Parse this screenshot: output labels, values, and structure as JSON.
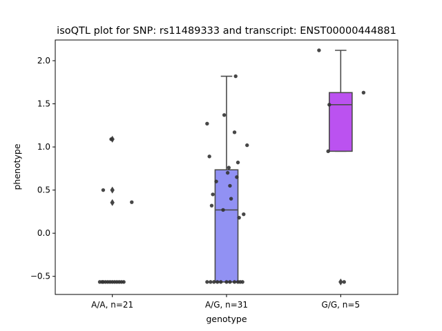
{
  "chart_data": {
    "type": "box",
    "title": "isoQTL plot for SNP: rs11489333 and transcript: ENST00000444881",
    "xlabel": "genotype",
    "ylabel": "phenotype",
    "ylim": [
      -0.71,
      2.24
    ],
    "yticks": [
      -0.5,
      0.0,
      0.5,
      1.0,
      1.5,
      2.0
    ],
    "ytick_labels": [
      "−0.5",
      "0.0",
      "0.5",
      "1.0",
      "1.5",
      "2.0"
    ],
    "grid": false,
    "categories": [
      "A/A, n=21",
      "A/G, n=31",
      "G/G, n=5"
    ],
    "boxes": [
      {
        "category": "A/A, n=21",
        "color": "#e9838a",
        "q1": -0.565,
        "median": -0.565,
        "q3": -0.565,
        "whisker_low": -0.565,
        "whisker_high": -0.565,
        "outliers": [
          1.09,
          0.5,
          0.355
        ]
      },
      {
        "category": "A/G, n=31",
        "color": "#9191f3",
        "q1": -0.565,
        "median": 0.27,
        "q3": 0.735,
        "whisker_low": -0.565,
        "whisker_high": 1.82,
        "outliers": []
      },
      {
        "category": "G/G, n=5",
        "color": "#bb52f0",
        "q1": 0.95,
        "median": 1.49,
        "q3": 1.63,
        "whisker_low": 0.95,
        "whisker_high": 2.12,
        "outliers": [
          -0.565
        ]
      }
    ],
    "points": [
      {
        "category": 0,
        "x": -0.11,
        "y": -0.565
      },
      {
        "category": 0,
        "x": -0.08,
        "y": -0.565
      },
      {
        "category": 0,
        "x": -0.06,
        "y": -0.565
      },
      {
        "category": 0,
        "x": -0.04,
        "y": -0.565
      },
      {
        "category": 0,
        "x": -0.02,
        "y": -0.565
      },
      {
        "category": 0,
        "x": 0.0,
        "y": -0.565
      },
      {
        "category": 0,
        "x": 0.02,
        "y": -0.565
      },
      {
        "category": 0,
        "x": 0.04,
        "y": -0.565
      },
      {
        "category": 0,
        "x": 0.06,
        "y": -0.565
      },
      {
        "category": 0,
        "x": 0.08,
        "y": -0.565
      },
      {
        "category": 0,
        "x": 0.1,
        "y": -0.565
      },
      {
        "category": 0,
        "x": -0.09,
        "y": -0.565
      },
      {
        "category": 0,
        "x": -0.01,
        "y": 1.09
      },
      {
        "category": 0,
        "x": -0.08,
        "y": 0.5
      },
      {
        "category": 0,
        "x": 0.17,
        "y": 0.36
      },
      {
        "category": 1,
        "x": -0.17,
        "y": 1.27
      },
      {
        "category": 1,
        "x": -0.02,
        "y": 1.37
      },
      {
        "category": 1,
        "x": 0.08,
        "y": 1.82
      },
      {
        "category": 1,
        "x": 0.07,
        "y": 1.17
      },
      {
        "category": 1,
        "x": 0.18,
        "y": 1.02
      },
      {
        "category": 1,
        "x": -0.15,
        "y": 0.89
      },
      {
        "category": 1,
        "x": 0.1,
        "y": 0.82
      },
      {
        "category": 1,
        "x": 0.02,
        "y": 0.76
      },
      {
        "category": 1,
        "x": 0.01,
        "y": 0.7
      },
      {
        "category": 1,
        "x": 0.09,
        "y": 0.65
      },
      {
        "category": 1,
        "x": -0.09,
        "y": 0.6
      },
      {
        "category": 1,
        "x": 0.03,
        "y": 0.55
      },
      {
        "category": 1,
        "x": -0.12,
        "y": 0.45
      },
      {
        "category": 1,
        "x": 0.04,
        "y": 0.4
      },
      {
        "category": 1,
        "x": -0.13,
        "y": 0.32
      },
      {
        "category": 1,
        "x": -0.03,
        "y": 0.27
      },
      {
        "category": 1,
        "x": 0.15,
        "y": 0.22
      },
      {
        "category": 1,
        "x": 0.11,
        "y": 0.18
      },
      {
        "category": 1,
        "x": -0.17,
        "y": -0.565
      },
      {
        "category": 1,
        "x": -0.14,
        "y": -0.565
      },
      {
        "category": 1,
        "x": -0.11,
        "y": -0.565
      },
      {
        "category": 1,
        "x": -0.08,
        "y": -0.565
      },
      {
        "category": 1,
        "x": -0.05,
        "y": -0.565
      },
      {
        "category": 1,
        "x": 0.0,
        "y": -0.565
      },
      {
        "category": 1,
        "x": 0.03,
        "y": -0.565
      },
      {
        "category": 1,
        "x": 0.07,
        "y": -0.565
      },
      {
        "category": 1,
        "x": 0.1,
        "y": -0.565
      },
      {
        "category": 1,
        "x": 0.12,
        "y": -0.565
      },
      {
        "category": 1,
        "x": 0.14,
        "y": -0.565
      },
      {
        "category": 2,
        "x": -0.19,
        "y": 2.12
      },
      {
        "category": 2,
        "x": -0.1,
        "y": 1.49
      },
      {
        "category": 2,
        "x": 0.2,
        "y": 1.63
      },
      {
        "category": 2,
        "x": -0.11,
        "y": 0.95
      },
      {
        "category": 2,
        "x": 0.03,
        "y": -0.565
      }
    ]
  }
}
